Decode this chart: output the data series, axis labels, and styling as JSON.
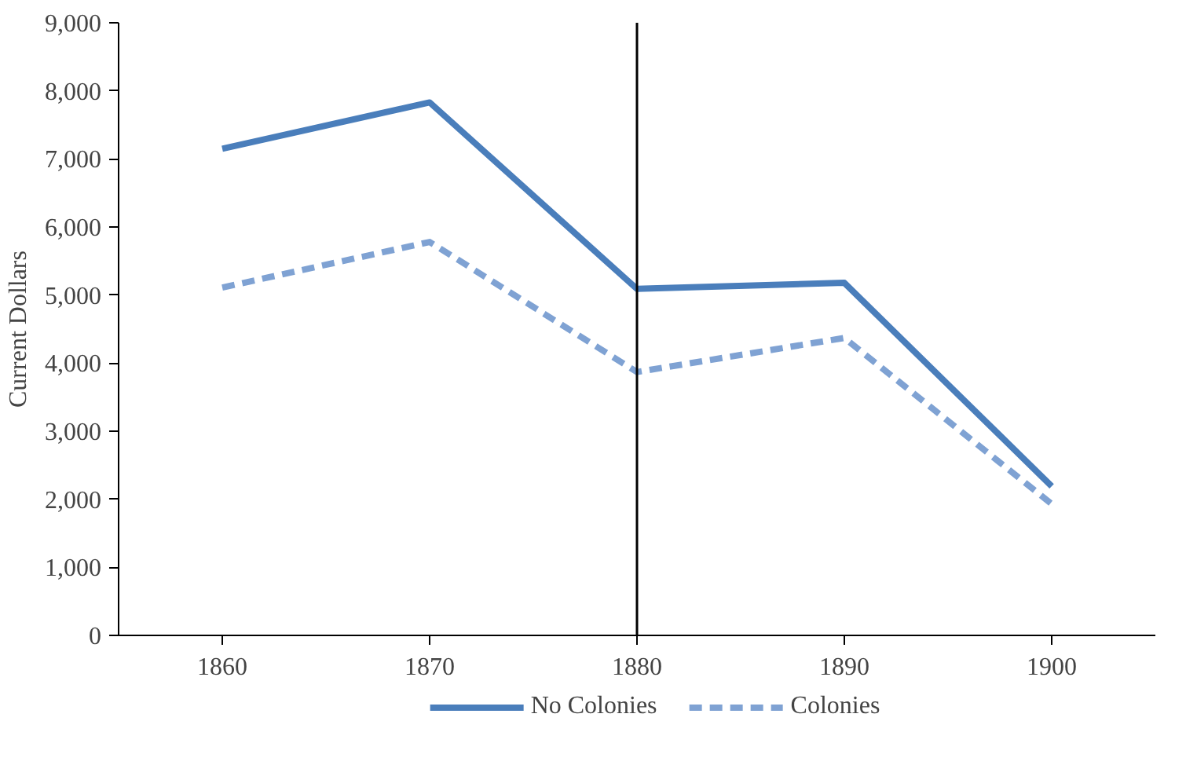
{
  "chart_data": {
    "type": "line",
    "ylabel": "Current Dollars",
    "categories": [
      "1860",
      "1870",
      "1880",
      "1890",
      "1900"
    ],
    "series": [
      {
        "name": "No Colonies",
        "color": "#4a7ebb",
        "line_style": "solid",
        "values": [
          7150,
          7830,
          5090,
          5180,
          2190
        ]
      },
      {
        "name": "Colonies",
        "color": "#7fa2d3",
        "line_style": "dashed",
        "values": [
          5110,
          5780,
          3870,
          4370,
          1930
        ]
      }
    ],
    "ylim": [
      0,
      9000
    ],
    "yticks": [
      {
        "value": 0,
        "label": "0"
      },
      {
        "value": 1000,
        "label": "1,000"
      },
      {
        "value": 2000,
        "label": "2,000"
      },
      {
        "value": 3000,
        "label": "3,000"
      },
      {
        "value": 4000,
        "label": "4,000"
      },
      {
        "value": 5000,
        "label": "5,000"
      },
      {
        "value": 6000,
        "label": "6,000"
      },
      {
        "value": 7000,
        "label": "7,000"
      },
      {
        "value": 8000,
        "label": "8,000"
      },
      {
        "value": 9000,
        "label": "9,000"
      }
    ],
    "ref_lines": [
      {
        "axis": "x",
        "value": "1880",
        "color": "#000000"
      }
    ],
    "grid": false,
    "legend": "bottom",
    "marker": "none"
  }
}
